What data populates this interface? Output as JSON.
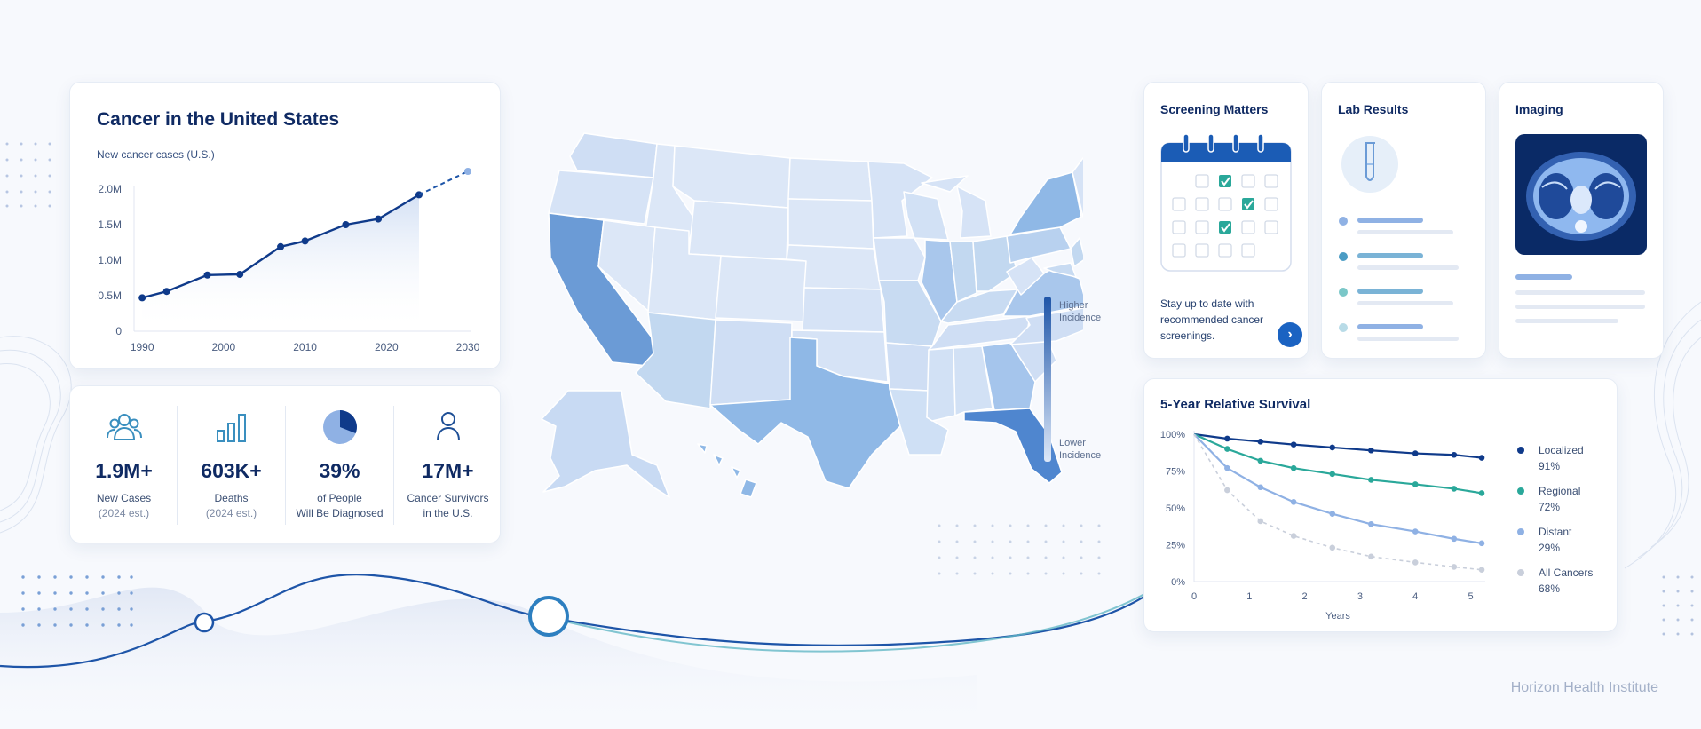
{
  "hero": {
    "title": "Cancer in the United States",
    "subtitle": "New cancer cases (U.S.)"
  },
  "stats": [
    {
      "value": "1.9M+",
      "label": "New Cases",
      "sub": "(2024 est.)",
      "icon": "people-group-icon"
    },
    {
      "value": "603K+",
      "label": "Deaths",
      "sub": "(2024 est.)",
      "icon": "bar-chart-icon"
    },
    {
      "value": "39%",
      "label": "of People",
      "sub": "Will Be Diagnosed",
      "icon": "pie-chart-icon"
    },
    {
      "value": "17M+",
      "label": "Cancer Survivors",
      "sub": "in the U.S.",
      "icon": "person-icon"
    }
  ],
  "map": {
    "legend_high": [
      "Higher",
      "Incidence"
    ],
    "legend_low": [
      "Lower",
      "Incidence"
    ]
  },
  "screening": {
    "title": "Screening Matters",
    "text": "Stay up to date with recommended cancer screenings.",
    "button_icon": "chevron-right-icon"
  },
  "lab": {
    "title": "Lab Results"
  },
  "imaging": {
    "title": "Imaging"
  },
  "survival": {
    "title": "5-Year Relative Survival"
  },
  "footer": {
    "brand": "Horizon Health Institute"
  },
  "colors": {
    "navy": "#0f3a8a",
    "teal": "#2aa89a",
    "light_blue": "#8fb1e4",
    "gray": "#c9cfdb",
    "accent": "#1b63c2"
  },
  "chart_data": [
    {
      "type": "line",
      "title": "Cancer in the United States",
      "subtitle": "New cancer cases (U.S.)",
      "xlabel": "",
      "ylabel": "",
      "x_ticks": [
        "1990",
        "2000",
        "2010",
        "2020",
        "2030"
      ],
      "y_ticks": [
        "0",
        "0.5M",
        "1.0M",
        "1.5M",
        "2.0M"
      ],
      "xlim": [
        1989,
        2030
      ],
      "ylim": [
        0,
        2.0
      ],
      "y_unit": "M",
      "series": [
        {
          "style": "solid",
          "x": [
            1990,
            1993,
            1998,
            2002,
            2007,
            2010,
            2015,
            2019,
            2024
          ],
          "y": [
            0.47,
            0.56,
            0.79,
            0.8,
            1.19,
            1.27,
            1.5,
            1.58,
            1.92
          ]
        },
        {
          "style": "dashed",
          "x": [
            2024,
            2030
          ],
          "y": [
            1.92,
            2.25
          ]
        }
      ],
      "grid": false
    },
    {
      "type": "line",
      "title": "5-Year Relative Survival",
      "xlabel": "Years",
      "x_ticks": [
        "0",
        "1",
        "2",
        "3",
        "4",
        "5"
      ],
      "y_ticks": [
        "0%",
        "25%",
        "50%",
        "75%",
        "100%"
      ],
      "xlim": [
        0,
        5.2
      ],
      "ylim": [
        0,
        100
      ],
      "legend_position": "right",
      "series": [
        {
          "name": "Localized",
          "legend_value": "91%",
          "color": "#0f3a8a",
          "style": "solid",
          "x": [
            0,
            0.6,
            1.2,
            1.8,
            2.5,
            3.2,
            4.0,
            4.7,
            5.2
          ],
          "y": [
            100,
            97,
            95,
            93,
            91,
            89,
            87,
            86,
            84
          ]
        },
        {
          "name": "Regional",
          "legend_value": "72%",
          "color": "#2aa89a",
          "style": "solid",
          "x": [
            0,
            0.6,
            1.2,
            1.8,
            2.5,
            3.2,
            4.0,
            4.7,
            5.2
          ],
          "y": [
            100,
            90,
            82,
            77,
            73,
            69,
            66,
            63,
            60
          ]
        },
        {
          "name": "Distant",
          "legend_value": "29%",
          "color": "#8fb1e4",
          "style": "solid",
          "x": [
            0,
            0.6,
            1.2,
            1.8,
            2.5,
            3.2,
            4.0,
            4.7,
            5.2
          ],
          "y": [
            100,
            77,
            64,
            54,
            46,
            39,
            34,
            29,
            26
          ]
        },
        {
          "name": "All Cancers",
          "legend_value": "68%",
          "color": "#c9cfdb",
          "style": "dashed",
          "x": [
            0,
            0.6,
            1.2,
            1.8,
            2.5,
            3.2,
            4.0,
            4.7,
            5.2
          ],
          "y": [
            100,
            62,
            41,
            31,
            23,
            17,
            13,
            10,
            8
          ]
        }
      ]
    }
  ]
}
